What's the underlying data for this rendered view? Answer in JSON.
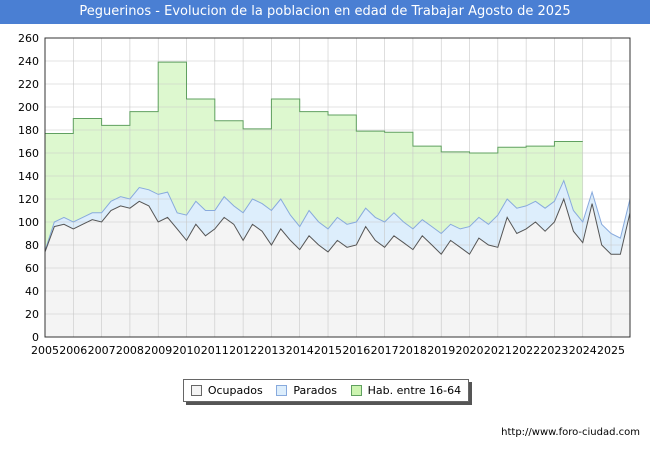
{
  "title": "Peguerinos - Evolucion de la poblacion en edad de Trabajar Agosto de 2025",
  "source": "http://www.foro-ciudad.com",
  "colors": {
    "title_bg": "#4a7fd3",
    "hab_fill": "#ddf8cf",
    "hab_line": "#60a060",
    "parados_fill": "#ddeefc",
    "parados_line": "#88aadd",
    "ocupados_fill": "#f4f4f4",
    "ocupados_line": "#555555"
  },
  "chart_data": {
    "type": "area",
    "title": "Peguerinos - Evolucion de la poblacion en edad de Trabajar Agosto de 2025",
    "xlabel": "",
    "ylabel": "",
    "xlim": [
      2005,
      2025.67
    ],
    "ylim": [
      0,
      260
    ],
    "y_ticks": [
      0,
      20,
      40,
      60,
      80,
      100,
      120,
      140,
      160,
      180,
      200,
      220,
      240,
      260
    ],
    "x_ticks": [
      2005,
      2006,
      2007,
      2008,
      2009,
      2010,
      2011,
      2012,
      2013,
      2014,
      2015,
      2016,
      2017,
      2018,
      2019,
      2020,
      2021,
      2022,
      2023,
      2024,
      2025
    ],
    "grid": true,
    "legend_position": "bottom",
    "legend": [
      "Ocupados",
      "Parados",
      "Hab. entre 16-64"
    ],
    "hab_16_64": {
      "name": "Hab. entre 16-64",
      "years": [
        2005,
        2006,
        2007,
        2008,
        2009,
        2010,
        2011,
        2012,
        2013,
        2014,
        2015,
        2016,
        2017,
        2018,
        2019,
        2020,
        2021,
        2022,
        2023
      ],
      "values": [
        177,
        190,
        184,
        196,
        239,
        207,
        188,
        181,
        207,
        196,
        193,
        179,
        178,
        166,
        161,
        160,
        165,
        166,
        170
      ]
    },
    "parados": {
      "name": "Parados",
      "x": [
        2005,
        2005.33,
        2005.67,
        2006,
        2006.33,
        2006.67,
        2007,
        2007.33,
        2007.67,
        2008,
        2008.33,
        2008.67,
        2009,
        2009.33,
        2009.67,
        2010,
        2010.33,
        2010.67,
        2011,
        2011.33,
        2011.67,
        2012,
        2012.33,
        2012.67,
        2013,
        2013.33,
        2013.67,
        2014,
        2014.33,
        2014.67,
        2015,
        2015.33,
        2015.67,
        2016,
        2016.33,
        2016.67,
        2017,
        2017.33,
        2017.67,
        2018,
        2018.33,
        2018.67,
        2019,
        2019.33,
        2019.67,
        2020,
        2020.33,
        2020.67,
        2021,
        2021.33,
        2021.67,
        2022,
        2022.33,
        2022.67,
        2023,
        2023.33,
        2023.67,
        2024,
        2024.33,
        2024.67,
        2025,
        2025.33,
        2025.67
      ],
      "values": [
        75,
        100,
        104,
        100,
        104,
        108,
        108,
        118,
        122,
        120,
        130,
        128,
        124,
        126,
        108,
        106,
        118,
        110,
        110,
        122,
        114,
        108,
        120,
        116,
        110,
        120,
        106,
        96,
        110,
        100,
        94,
        104,
        98,
        100,
        112,
        104,
        100,
        108,
        100,
        94,
        102,
        96,
        90,
        98,
        94,
        96,
        104,
        98,
        106,
        120,
        112,
        114,
        118,
        112,
        118,
        136,
        110,
        100,
        126,
        98,
        90,
        86,
        120
      ]
    },
    "ocupados": {
      "name": "Ocupados",
      "x": [
        2005,
        2005.33,
        2005.67,
        2006,
        2006.33,
        2006.67,
        2007,
        2007.33,
        2007.67,
        2008,
        2008.33,
        2008.67,
        2009,
        2009.33,
        2009.67,
        2010,
        2010.33,
        2010.67,
        2011,
        2011.33,
        2011.67,
        2012,
        2012.33,
        2012.67,
        2013,
        2013.33,
        2013.67,
        2014,
        2014.33,
        2014.67,
        2015,
        2015.33,
        2015.67,
        2016,
        2016.33,
        2016.67,
        2017,
        2017.33,
        2017.67,
        2018,
        2018.33,
        2018.67,
        2019,
        2019.33,
        2019.67,
        2020,
        2020.33,
        2020.67,
        2021,
        2021.33,
        2021.67,
        2022,
        2022.33,
        2022.67,
        2023,
        2023.33,
        2023.67,
        2024,
        2024.33,
        2024.67,
        2025,
        2025.33,
        2025.67
      ],
      "values": [
        74,
        96,
        98,
        94,
        98,
        102,
        100,
        110,
        114,
        112,
        118,
        114,
        100,
        104,
        94,
        84,
        98,
        88,
        94,
        104,
        98,
        84,
        98,
        92,
        80,
        94,
        84,
        76,
        88,
        80,
        74,
        84,
        78,
        80,
        96,
        84,
        78,
        88,
        82,
        76,
        88,
        80,
        72,
        84,
        78,
        72,
        86,
        80,
        78,
        104,
        90,
        94,
        100,
        92,
        100,
        120,
        92,
        82,
        116,
        80,
        72,
        72,
        108
      ]
    }
  }
}
